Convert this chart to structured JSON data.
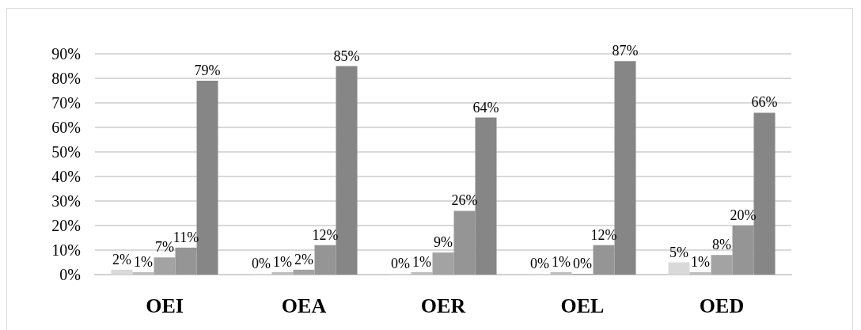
{
  "chart_data": {
    "type": "bar",
    "categories": [
      "OEI",
      "OEA",
      "OER",
      "OEL",
      "OED"
    ],
    "series": [
      {
        "color": "#d9d9d9",
        "values": [
          2,
          0,
          0,
          0,
          5
        ],
        "value_labels": [
          "2%",
          "0%",
          "0%",
          "0%",
          "5%"
        ]
      },
      {
        "color": "#bdbdbd",
        "values": [
          1,
          1,
          1,
          1,
          1
        ],
        "value_labels": [
          "1%",
          "1%",
          "1%",
          "1%",
          "1%"
        ]
      },
      {
        "color": "#a3a3a3",
        "values": [
          7,
          2,
          9,
          0,
          8
        ],
        "value_labels": [
          "7%",
          "2%",
          "9%",
          "0%",
          "8%"
        ]
      },
      {
        "color": "#959595",
        "values": [
          11,
          12,
          26,
          12,
          20
        ],
        "value_labels": [
          "11%",
          "12%",
          "26%",
          "12%",
          "20%"
        ]
      },
      {
        "color": "#868686",
        "values": [
          79,
          85,
          64,
          87,
          66
        ],
        "value_labels": [
          "79%",
          "85%",
          "64%",
          "87%",
          "66%"
        ]
      }
    ],
    "ylim": [
      0,
      90
    ],
    "yticks": [
      {
        "value": 0,
        "label": "0%"
      },
      {
        "value": 10,
        "label": "10%"
      },
      {
        "value": 20,
        "label": "20%"
      },
      {
        "value": 30,
        "label": "30%"
      },
      {
        "value": 40,
        "label": "40%"
      },
      {
        "value": 50,
        "label": "50%"
      },
      {
        "value": 60,
        "label": "60%"
      },
      {
        "value": 70,
        "label": "70%"
      },
      {
        "value": 80,
        "label": "80%"
      },
      {
        "value": 90,
        "label": "90%"
      }
    ],
    "grid": "y"
  }
}
